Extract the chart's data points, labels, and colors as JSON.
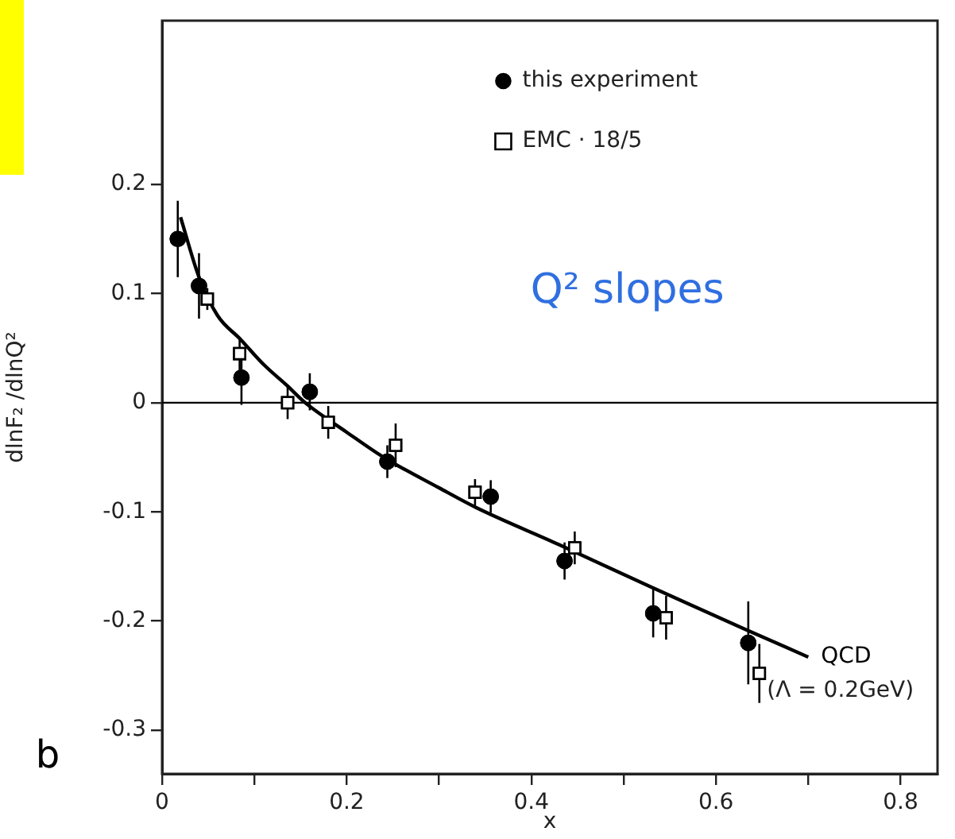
{
  "chart_data": {
    "type": "scatter",
    "xlabel": "x",
    "ylabel": "dlnF₂ /dlnQ²",
    "xlim": [
      0,
      0.84
    ],
    "xticks": [
      0,
      {
        "value": 0.1,
        "label": null
      },
      0.2,
      {
        "value": 0.3,
        "label": null
      },
      0.4,
      {
        "value": 0.5,
        "label": null
      },
      0.6,
      {
        "value": 0.7,
        "label": null
      },
      0.8
    ],
    "ylim": [
      -0.34,
      0.35
    ],
    "yticks": [
      -0.3,
      -0.2,
      -0.1,
      0,
      0.1,
      0.2
    ],
    "grid": false,
    "legend": "top right",
    "series": [
      {
        "name": "this experiment",
        "marker": "circle",
        "color": "#000000",
        "x": [
          0.017,
          0.04,
          0.086,
          0.16,
          0.244,
          0.356,
          0.436,
          0.532,
          0.635
        ],
        "values": [
          0.15,
          0.107,
          0.023,
          0.01,
          -0.054,
          -0.086,
          -0.145,
          -0.193,
          -0.22
        ],
        "errors": [
          0.035,
          0.03,
          0.025,
          0.017,
          0.015,
          0.015,
          0.017,
          0.022,
          0.038
        ]
      },
      {
        "name": "EMC · 18/5",
        "marker": "square",
        "color": "#000000",
        "x": [
          0.049,
          0.084,
          0.136,
          0.18,
          0.253,
          0.339,
          0.447,
          0.546,
          0.647
        ],
        "values": [
          0.095,
          0.045,
          0.0,
          -0.018,
          -0.039,
          -0.082,
          -0.133,
          -0.197,
          -0.248
        ],
        "errors": [
          0.01,
          0.015,
          0.015,
          0.015,
          0.02,
          0.012,
          0.015,
          0.02,
          0.027
        ]
      },
      {
        "name": "QCD",
        "type": "line",
        "marker": "none",
        "color": "#000000",
        "x": [
          0.02,
          0.04,
          0.06,
          0.085,
          0.11,
          0.135,
          0.155,
          0.2,
          0.24,
          0.3,
          0.34,
          0.43,
          0.53,
          0.63,
          0.7
        ],
        "values": [
          0.17,
          0.115,
          0.08,
          0.058,
          0.035,
          0.016,
          0,
          -0.027,
          -0.05,
          -0.078,
          -0.096,
          -0.13,
          -0.169,
          -0.207,
          -0.233
        ]
      }
    ],
    "ref_lines": [
      {
        "axis": "y",
        "value": 0,
        "color": "#000000"
      }
    ],
    "annotations": [
      "Q² slopes",
      "(Λ = 0.2GeV)",
      "b"
    ]
  }
}
